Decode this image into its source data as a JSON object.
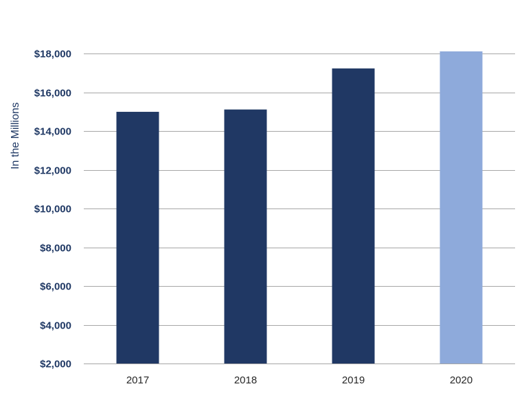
{
  "chart_data": {
    "type": "bar",
    "title": "",
    "xlabel": "",
    "ylabel": "In the Millions",
    "categories": [
      "2017",
      "2018",
      "2019",
      "2020"
    ],
    "values": [
      14990,
      15110,
      17230,
      18110
    ],
    "colors": [
      "#203864",
      "#203864",
      "#203864",
      "#8eaadb"
    ],
    "ylim": [
      2000,
      18000
    ],
    "yticks": [
      2000,
      4000,
      6000,
      8000,
      10000,
      12000,
      14000,
      16000,
      18000
    ],
    "ytick_labels": [
      "$2,000",
      "$4,000",
      "$6,000",
      "$8,000",
      "$10,000",
      "$12,000",
      "$14,000",
      "$16,000",
      "$18,000"
    ],
    "grid": true,
    "legend": "none"
  }
}
